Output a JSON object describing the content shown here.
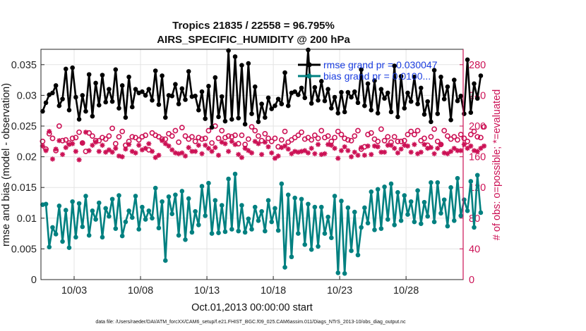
{
  "chart_data": {
    "type": "line",
    "title_line1": "Tropics 21835 / 22558 = 96.795%",
    "title_line2": "AIRS_SPECIFIC_HUMIDITY @ 200 hPa",
    "xlabel": "Oct.01,2013 00:00:00 start",
    "ylabel_left": "rmse and bias (model - observation)",
    "ylabel_right": "# of obs: o=possible; *=evaluated",
    "footnote": "data file: /Users/raeder/DAI/ATM_forcXX/CAM6_setup/f.e21.FHIST_BGC.f09_025.CAM6assim.011/Diags_NTrS_2013-10/obs_diag_output.nc",
    "xlim": [
      0.5,
      32.3
    ],
    "ylim_left": [
      0,
      0.0375
    ],
    "ylim_right": [
      0,
      300
    ],
    "x_tick_values": [
      3,
      8,
      13,
      18,
      23,
      28
    ],
    "x_tick_labels": [
      "10/03",
      "10/08",
      "10/13",
      "10/18",
      "10/23",
      "10/28"
    ],
    "y_left_tick_values": [
      0,
      0.005,
      0.01,
      0.015,
      0.02,
      0.025,
      0.03,
      0.035
    ],
    "y_left_tick_labels": [
      "0",
      "0.005",
      "0.01",
      "0.015",
      "0.02",
      "0.025",
      "0.03",
      "0.035"
    ],
    "y_right_tick_values": [
      0,
      40,
      80,
      120,
      160,
      200,
      240,
      280
    ],
    "y_right_tick_labels": [
      "0",
      "40",
      "80",
      "120",
      "160",
      "200",
      "240",
      "280"
    ],
    "time_step_days": 0.25,
    "x_start": 0.625,
    "legend": [
      {
        "name": "rmse grand pr = 0.030047",
        "color": "#000000"
      },
      {
        "name": "bias grand pr = 0.0100...",
        "color": "#008080"
      }
    ],
    "series": [
      {
        "name": "rmse",
        "axis": "left",
        "color": "#000000",
        "values": [
          0.0274,
          0.0288,
          0.0301,
          0.0304,
          0.0316,
          0.0283,
          0.0294,
          0.0343,
          0.0276,
          0.0345,
          0.0297,
          0.0261,
          0.03,
          0.0274,
          0.0334,
          0.0266,
          0.032,
          0.0284,
          0.0333,
          0.0289,
          0.031,
          0.029,
          0.0342,
          0.0279,
          0.0316,
          0.0264,
          0.033,
          0.0281,
          0.031,
          0.0304,
          0.0306,
          0.03,
          0.031,
          0.0292,
          0.034,
          0.0285,
          0.0332,
          0.0264,
          0.03,
          0.0299,
          0.0318,
          0.0286,
          0.0311,
          0.0293,
          0.0339,
          0.0298,
          0.0299,
          0.0276,
          0.0306,
          0.0262,
          0.0315,
          0.0248,
          0.0329,
          0.0265,
          0.0298,
          0.0258,
          0.0373,
          0.0261,
          0.0363,
          0.0263,
          0.0349,
          0.0253,
          0.0352,
          0.027,
          0.0314,
          0.0257,
          0.0286,
          0.0264,
          0.0296,
          0.0278,
          0.0283,
          0.0294,
          0.0286,
          0.0337,
          0.0283,
          0.0304,
          0.0306,
          0.0301,
          0.0312,
          0.0296,
          0.0374,
          0.0287,
          0.0313,
          0.0292,
          0.0323,
          0.0291,
          0.031,
          0.0279,
          0.0297,
          0.0271,
          0.0305,
          0.0273,
          0.0305,
          0.0297,
          0.0306,
          0.0288,
          0.0342,
          0.0283,
          0.0319,
          0.0276,
          0.0324,
          0.0271,
          0.031,
          0.0295,
          0.0304,
          0.0273,
          0.0348,
          0.0265,
          0.0331,
          0.0279,
          0.0304,
          0.029,
          0.033,
          0.0286,
          0.0312,
          0.0269,
          0.029,
          0.0257,
          0.0341,
          0.027,
          0.033,
          0.0294,
          0.0314,
          0.026,
          0.0325,
          0.0291,
          0.0299,
          0.027,
          0.0358,
          0.0272,
          0.0319,
          0.0295,
          0.0332
        ]
      },
      {
        "name": "bias",
        "axis": "left",
        "color": "#008080",
        "values": [
          0.0122,
          0.0123,
          0.0053,
          0.0085,
          0.0074,
          0.012,
          0.0062,
          0.0113,
          0.0052,
          0.0127,
          0.0069,
          0.0124,
          0.0086,
          0.0136,
          0.0072,
          0.0112,
          0.0098,
          0.0125,
          0.0069,
          0.0116,
          0.0103,
          0.0131,
          0.0083,
          0.0137,
          0.0071,
          0.0094,
          0.0112,
          0.0101,
          0.0136,
          0.0082,
          0.0118,
          0.0098,
          0.0112,
          0.01,
          0.0149,
          0.0084,
          0.0127,
          0.0031,
          0.0135,
          0.0107,
          0.0138,
          0.0072,
          0.0144,
          0.0065,
          0.0132,
          0.0077,
          0.0111,
          0.0089,
          0.0152,
          0.0104,
          0.0157,
          0.0075,
          0.0129,
          0.0076,
          0.0121,
          0.0078,
          0.0164,
          0.0082,
          0.0172,
          0.0079,
          0.0121,
          0.0077,
          0.0099,
          0.0082,
          0.0118,
          0.0096,
          0.0111,
          0.0079,
          0.0129,
          0.0094,
          0.0116,
          0.008,
          0.0156,
          0.002,
          0.0138,
          0.0037,
          0.0133,
          0.0075,
          0.0131,
          0.0057,
          0.0123,
          0.0049,
          0.0118,
          0.0054,
          0.0118,
          0.0075,
          0.0102,
          0.0068,
          0.0136,
          0.0011,
          0.0128,
          0.001,
          0.0117,
          0.0047,
          0.011,
          0.004,
          0.0085,
          0.0117,
          0.0092,
          0.0143,
          0.0081,
          0.0147,
          0.0083,
          0.0151,
          0.0098,
          0.0156,
          0.0089,
          0.0142,
          0.0096,
          0.0137,
          0.0106,
          0.0127,
          0.0094,
          0.0145,
          0.0091,
          0.0126,
          0.0103,
          0.0158,
          0.0094,
          0.0158,
          0.0108,
          0.013,
          0.0087,
          0.015,
          0.0096,
          0.0165,
          0.0104,
          0.013,
          0.0112,
          0.016,
          0.0085,
          0.017,
          0.0109
        ]
      },
      {
        "name": "possible",
        "axis": "right",
        "color": "#cc1155",
        "marker": "o",
        "values": [
          180,
          170,
          190,
          184,
          168,
          200,
          181,
          182,
          178,
          184,
          185,
          192,
          178,
          167,
          191,
          187,
          181,
          181,
          185,
          183,
          187,
          197,
          177,
          186,
          193,
          175,
          180,
          186,
          185,
          182,
          186,
          188,
          169,
          191,
          188,
          186,
          183,
          183,
          190,
          187,
          194,
          179,
          198,
          187,
          183,
          186,
          180,
          185,
          183,
          184,
          194,
          178,
          200,
          184,
          194,
          185,
          187,
          186,
          188,
          177,
          188,
          176,
          183,
          199,
          194,
          187,
          181,
          190,
          184,
          180,
          184,
          173,
          182,
          193,
          179,
          182,
          185,
          188,
          192,
          183,
          185,
          182,
          188,
          184,
          194,
          185,
          187,
          180,
          185,
          193,
          189,
          184,
          182,
          181,
          187,
          194,
          170,
          173,
          189,
          191,
          183,
          180,
          196,
          181,
          186,
          179,
          186,
          180,
          180,
          181,
          189,
          193,
          189,
          194,
          181,
          184,
          175,
          186,
          196,
          180,
          176,
          194,
          187,
          183,
          186,
          182,
          189,
          184,
          180,
          189,
          193,
          186,
          185,
          199
        ]
      },
      {
        "name": "evaluated",
        "axis": "right",
        "color": "#cc1155",
        "marker": "*",
        "values": [
          174,
          168,
          193,
          157,
          170,
          181,
          163,
          172,
          176,
          177,
          167,
          156,
          178,
          192,
          168,
          175,
          179,
          167,
          175,
          166,
          169,
          166,
          171,
          161,
          160,
          170,
          176,
          167,
          165,
          175,
          169,
          171,
          177,
          167,
          159,
          162,
          181,
          177,
          174,
          169,
          165,
          164,
          165,
          161,
          172,
          167,
          167,
          175,
          164,
          175,
          171,
          167,
          172,
          162,
          179,
          177,
          167,
          180,
          176,
          163,
          159,
          171,
          168,
          165,
          180,
          177,
          163,
          179,
          173,
          165,
          158,
          161,
          172,
          174,
          170,
          164,
          167,
          166,
          167,
          168,
          165,
          171,
          164,
          176,
          163,
          164,
          176,
          175,
          171,
          158,
          168,
          173,
          168,
          160,
          166,
          162,
          172,
          162,
          174,
          163,
          174,
          173,
          166,
          166,
          175,
          175,
          171,
          165,
          170,
          175,
          174,
          166,
          176,
          164,
          166,
          176,
          171,
          172,
          164,
          171,
          176,
          165,
          164,
          167,
          171,
          168,
          168,
          176,
          171,
          174,
          168,
          167,
          171,
          174
        ]
      }
    ]
  }
}
